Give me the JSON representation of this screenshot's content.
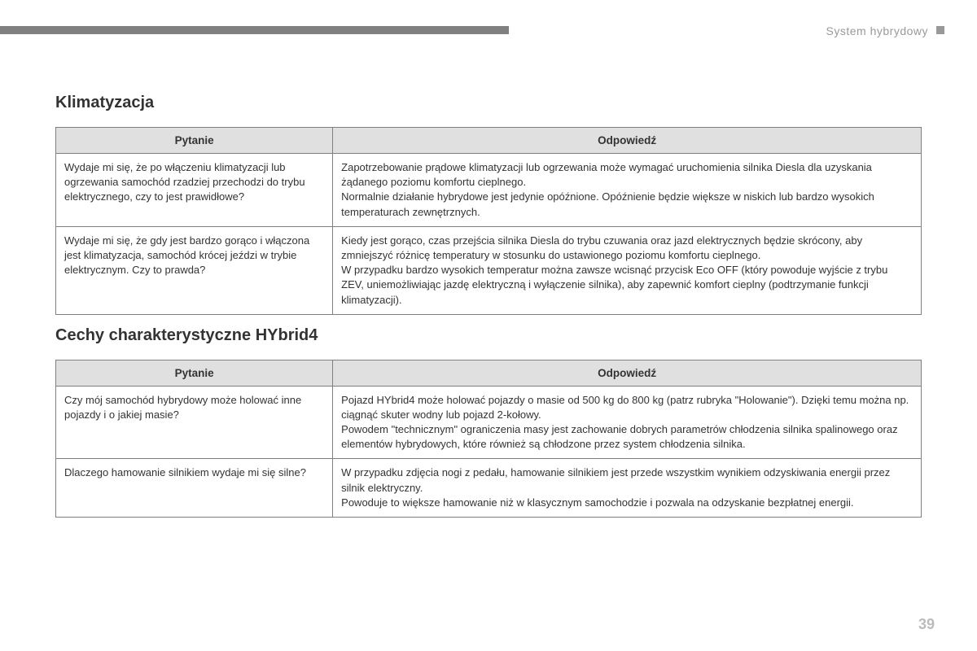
{
  "header": {
    "section_label": "System hybrydowy"
  },
  "section1": {
    "title": "Klimatyzacja",
    "columns": {
      "q": "Pytanie",
      "a": "Odpowiedź"
    },
    "rows": [
      {
        "q": "Wydaje mi się, że po włączeniu klimatyzacji lub ogrzewania samochód rzadziej przechodzi do trybu elektrycznego, czy to jest prawidłowe?",
        "a": "Zapotrzebowanie prądowe klimatyzacji lub ogrzewania może wymagać uruchomienia silnika Diesla dla uzyskania żądanego poziomu komfortu cieplnego.\nNormalnie działanie hybrydowe jest jedynie opóźnione. Opóźnienie będzie większe w niskich lub bardzo wysokich temperaturach zewnętrznych."
      },
      {
        "q": "Wydaje mi się, że gdy jest bardzo gorąco i włączona jest klimatyzacja, samochód krócej jeździ w trybie elektrycznym. Czy to prawda?",
        "a": "Kiedy jest gorąco, czas przejścia silnika Diesla do trybu czuwania oraz jazd elektrycznych będzie skrócony, aby zmniejszyć różnicę temperatury w stosunku do ustawionego poziomu komfortu cieplnego.\nW przypadku bardzo wysokich temperatur można zawsze wcisnąć przycisk Eco OFF (który powoduje wyjście z trybu ZEV, uniemożliwiając jazdę elektryczną i wyłączenie silnika), aby zapewnić komfort cieplny (podtrzymanie funkcji klimatyzacji)."
      }
    ]
  },
  "section2": {
    "title": "Cechy charakterystyczne HYbrid4",
    "columns": {
      "q": "Pytanie",
      "a": "Odpowiedź"
    },
    "rows": [
      {
        "q": "Czy mój samochód hybrydowy może holować inne pojazdy i o jakiej masie?",
        "a": "Pojazd HYbrid4 może holować pojazdy o masie od 500 kg do 800 kg (patrz rubryka \"Holowanie\"). Dzięki temu można np. ciągnąć skuter wodny lub pojazd 2-kołowy.\nPowodem \"technicznym\" ograniczenia masy jest zachowanie dobrych parametrów chłodzenia silnika spalinowego oraz elementów hybrydowych, które również są chłodzone przez system chłodzenia silnika."
      },
      {
        "q": "Dlaczego hamowanie silnikiem wydaje mi się silne?",
        "a": "W przypadku zdjęcia nogi z pedału, hamowanie silnikiem jest przede wszystkim wynikiem odzyskiwania energii przez silnik elektryczny.\nPowoduje to większe hamowanie niż w klasycznym samochodzie i pozwala na odzyskanie bezpłatnej energii."
      }
    ]
  },
  "page_number": "39",
  "styles": {
    "page_bg": "#ffffff",
    "bar_color": "#808080",
    "header_text_color": "#999999",
    "th_bg": "#e0e0e0",
    "border_color": "#808080",
    "text_color": "#333333",
    "pagenum_color": "#bbbbbb"
  }
}
